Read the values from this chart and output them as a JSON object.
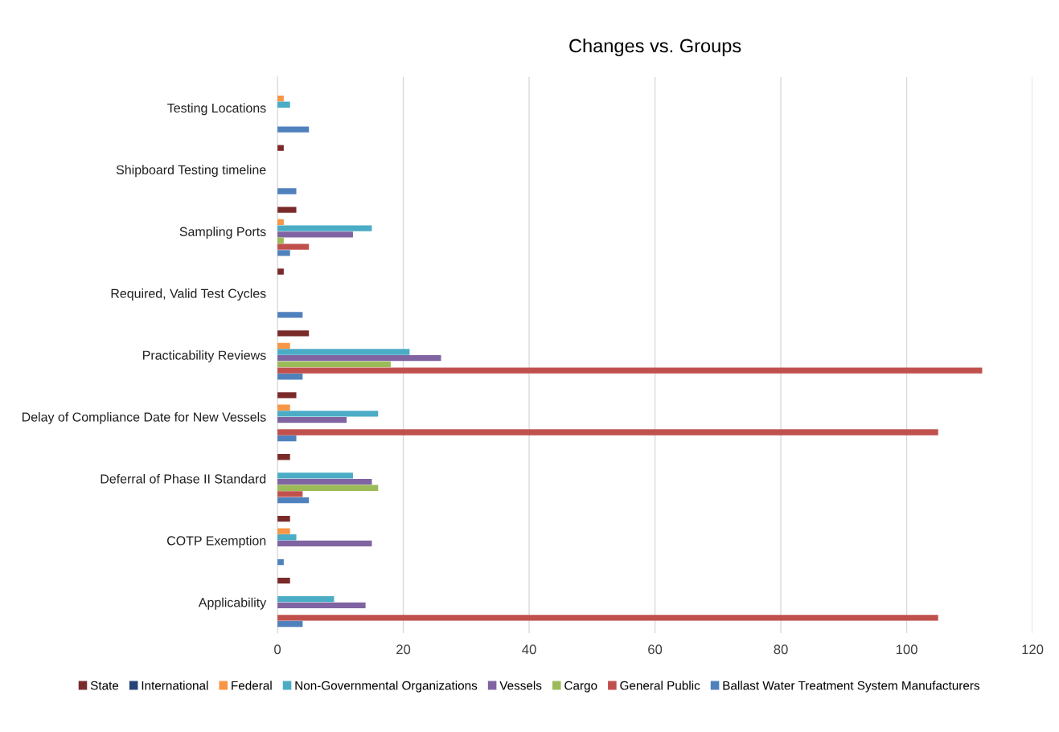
{
  "chart_data": {
    "type": "bar",
    "orientation": "horizontal",
    "title": "Changes vs. Groups",
    "categories": [
      "Testing Locations",
      "Shipboard Testing timeline",
      "Sampling Ports",
      "Required, Valid Test Cycles",
      "Practicability Reviews",
      "Delay of Compliance Date for New Vessels",
      "Deferral of Phase II Standard",
      "COTP Exemption",
      "Applicability"
    ],
    "series": [
      {
        "name": "State",
        "color": "#7b2a2a",
        "values": [
          null,
          1,
          3,
          1,
          5,
          3,
          2,
          2,
          2
        ]
      },
      {
        "name": "International",
        "color": "#264478",
        "values": [
          null,
          null,
          null,
          null,
          null,
          null,
          null,
          null,
          null
        ]
      },
      {
        "name": "Federal",
        "color": "#f79646",
        "values": [
          1,
          null,
          1,
          null,
          2,
          2,
          null,
          2,
          null
        ]
      },
      {
        "name": "Non-Governmental Organizations",
        "color": "#4bacc6",
        "values": [
          2,
          null,
          15,
          null,
          21,
          16,
          12,
          3,
          9
        ]
      },
      {
        "name": "Vessels",
        "color": "#8064a2",
        "values": [
          null,
          null,
          12,
          null,
          26,
          11,
          15,
          15,
          14
        ]
      },
      {
        "name": "Cargo",
        "color": "#9bbb59",
        "values": [
          null,
          null,
          1,
          null,
          18,
          null,
          16,
          null,
          null
        ]
      },
      {
        "name": "General Public",
        "color": "#c0504d",
        "values": [
          null,
          null,
          5,
          null,
          112,
          105,
          4,
          null,
          105
        ]
      },
      {
        "name": "Ballast Water Treatment System Manufacturers",
        "color": "#4f81bd",
        "values": [
          5,
          3,
          2,
          4,
          4,
          3,
          5,
          1,
          4
        ]
      }
    ],
    "xlim": [
      0,
      120
    ],
    "xticks": [
      0,
      20,
      40,
      60,
      80,
      100,
      120
    ],
    "grid": "x",
    "legend": "bottom"
  }
}
